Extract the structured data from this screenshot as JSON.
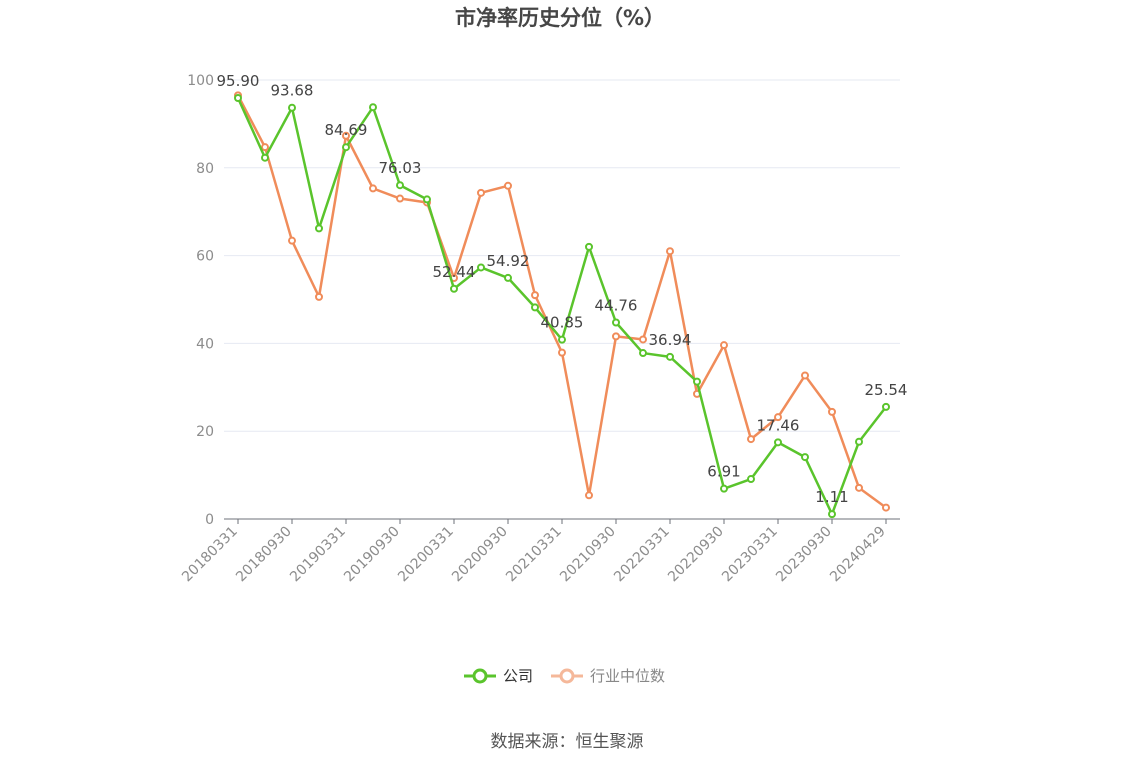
{
  "chart_data": {
    "type": "line",
    "title": "市净率历史分位（%）",
    "source": "数据来源：恒生聚源",
    "ylim": [
      0,
      100
    ],
    "y_ticks": [
      0,
      20,
      40,
      60,
      80,
      100
    ],
    "x_tick_labels": [
      "20180331",
      "20180930",
      "20190331",
      "20190930",
      "20200331",
      "20200930",
      "20210331",
      "20210930",
      "20220331",
      "20220930",
      "20230331",
      "20230930",
      "20240429"
    ],
    "x": [
      "20180331",
      "20180630",
      "20180930",
      "20181231",
      "20190331",
      "20190630",
      "20190930",
      "20191231",
      "20200331",
      "20200630",
      "20200930",
      "20201231",
      "20210331",
      "20210630",
      "20210930",
      "20211231",
      "20220331",
      "20220630",
      "20220930",
      "20221231",
      "20230331",
      "20230630",
      "20230930",
      "20231231",
      "20240429"
    ],
    "grid": true,
    "legend_position": "bottom-center",
    "series": [
      {
        "name": "公司",
        "color": "#5ac42c",
        "values": [
          95.9,
          82.3,
          93.68,
          66.2,
          84.69,
          93.8,
          76.03,
          72.8,
          52.44,
          57.3,
          54.92,
          48.2,
          40.85,
          62.0,
          44.76,
          37.8,
          36.94,
          31.3,
          6.91,
          9.1,
          17.46,
          14.1,
          1.11,
          17.6,
          25.54
        ],
        "labels": {
          "0": "95.90",
          "2": "93.68",
          "4": "84.69",
          "6": "76.03",
          "8": "52.44",
          "10": "54.92",
          "12": "40.85",
          "14": "44.76",
          "16": "36.94",
          "18": "6.91",
          "20": "17.46",
          "22": "1.11",
          "24": "25.54"
        }
      },
      {
        "name": "行业中位数",
        "color": "#f08c5a",
        "values": [
          96.5,
          84.7,
          63.4,
          50.6,
          87.3,
          75.3,
          73.0,
          72.1,
          54.9,
          74.3,
          75.9,
          51.0,
          37.9,
          5.4,
          41.6,
          40.9,
          61.0,
          28.5,
          39.6,
          18.2,
          23.2,
          32.7,
          24.4,
          7.1,
          2.6
        ]
      }
    ]
  }
}
